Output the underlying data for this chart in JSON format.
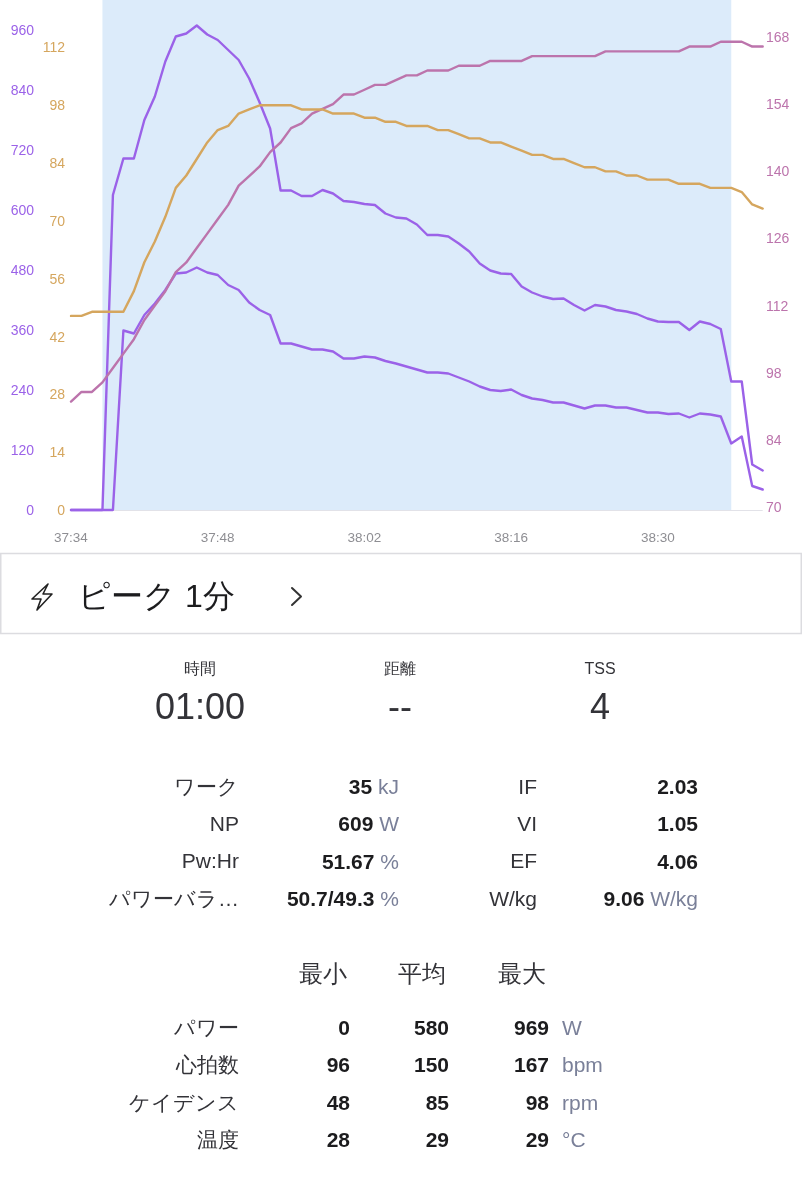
{
  "chart_data": [
    {
      "type": "line",
      "x": [
        2254,
        2255,
        2256,
        2257,
        2258,
        2259,
        2260,
        2261,
        2262,
        2263,
        2264,
        2265,
        2266,
        2267,
        2268,
        2269,
        2270,
        2271,
        2272,
        2273,
        2274,
        2275,
        2276,
        2277,
        2278,
        2279,
        2280,
        2281,
        2282,
        2283,
        2284,
        2285,
        2286,
        2287,
        2288,
        2289,
        2290,
        2291,
        2292,
        2293,
        2294,
        2295,
        2296,
        2297,
        2298,
        2299,
        2300,
        2301,
        2302,
        2303,
        2304,
        2305,
        2306,
        2307,
        2308,
        2309,
        2310,
        2311,
        2312,
        2313,
        2314,
        2315,
        2316,
        2317,
        2318,
        2319,
        2320
      ],
      "xlim": [
        2254,
        2320
      ],
      "xticks": [
        {
          "value": 2254,
          "label": "37:34"
        },
        {
          "value": 2268,
          "label": "37:48"
        },
        {
          "value": 2282,
          "label": "38:02"
        },
        {
          "value": 2296,
          "label": "38:16"
        },
        {
          "value": 2310,
          "label": "38:30"
        }
      ],
      "ylim": [
        0,
        1020
      ],
      "yticks": [
        0,
        120,
        240,
        360,
        480,
        600,
        720,
        840,
        960
      ],
      "y2lim": [
        69.4,
        175.7
      ],
      "y2ticks": [
        70,
        84,
        98,
        112,
        126,
        140,
        154,
        168
      ],
      "y3lim": [
        0,
        123.5
      ],
      "y3ticks": [
        0,
        14,
        28,
        42,
        56,
        70,
        84,
        98,
        112
      ],
      "series": [
        {
          "color": "#9b62e8",
          "values": [
            0,
            0,
            0,
            0,
            630,
            703,
            703,
            780,
            827,
            897,
            947,
            953,
            969,
            951,
            940,
            920,
            900,
            863,
            815,
            763,
            639,
            639,
            628,
            628,
            640,
            633,
            618,
            616,
            612,
            610,
            593,
            585,
            583,
            571,
            550,
            550,
            547,
            533,
            517,
            493,
            479,
            473,
            472,
            447,
            435,
            427,
            422,
            423,
            410,
            399,
            410,
            407,
            400,
            397,
            392,
            383,
            377,
            376,
            376,
            360,
            377,
            372,
            362,
            257,
            257,
            91,
            79
          ]
        },
        {
          "color": "#9b62e8",
          "values": [
            0,
            0,
            0,
            0,
            0,
            359,
            353,
            390,
            413,
            440,
            473,
            475,
            485,
            475,
            470,
            450,
            440,
            415,
            400,
            390,
            333,
            333,
            327,
            321,
            321,
            317,
            303,
            303,
            307,
            305,
            298,
            293,
            287,
            281,
            275,
            275,
            273,
            265,
            257,
            247,
            240,
            238,
            241,
            230,
            223,
            220,
            215,
            215,
            209,
            203,
            209,
            209,
            205,
            205,
            200,
            195,
            195,
            192,
            193,
            185,
            193,
            191,
            187,
            133,
            147,
            48,
            41
          ]
        },
        {
          "color": "#bc74ac",
          "axis": "y2",
          "values": [
            92,
            94,
            94,
            96,
            99,
            102,
            105,
            109,
            112,
            115,
            119,
            121,
            124,
            127,
            130,
            133,
            137,
            139,
            141,
            144,
            146,
            149,
            150,
            152,
            153,
            154,
            156,
            156,
            157,
            158,
            158,
            159,
            160,
            160,
            161,
            161,
            161,
            162,
            162,
            162,
            163,
            163,
            163,
            163,
            164,
            164,
            164,
            164,
            164,
            164,
            164,
            165,
            165,
            165,
            165,
            165,
            165,
            165,
            165,
            166,
            166,
            166,
            167,
            167,
            167,
            166,
            166
          ]
        },
        {
          "color": "#d5a65e",
          "axis": "y3",
          "values": [
            47,
            47,
            48,
            48,
            48,
            48,
            53,
            60,
            65,
            71,
            78,
            81,
            85,
            89,
            92,
            93,
            96,
            97,
            98,
            98,
            98,
            98,
            97,
            97,
            97,
            96,
            96,
            96,
            95,
            95,
            94,
            94,
            93,
            93,
            93,
            92,
            92,
            91,
            90,
            90,
            89,
            89,
            88,
            87,
            86,
            86,
            85,
            85,
            84,
            83,
            83,
            82,
            82,
            81,
            81,
            80,
            80,
            80,
            79,
            79,
            79,
            78,
            78,
            78,
            77,
            74,
            73
          ]
        }
      ],
      "bands": [
        {
          "axis": "x",
          "from": 2257,
          "to": 2317,
          "color": "#dcebfa"
        }
      ]
    },
    {
      "type": "other",
      "title": "ピーク 1分",
      "annotations": [
        "時間",
        "01:00",
        "距離",
        "--",
        "TSS",
        "4",
        "ワーク",
        "35 kJ",
        "IF",
        "2.03",
        "NP",
        "609 W",
        "VI",
        "1.05",
        "Pw:Hr",
        "51.67 %",
        "EF",
        "4.06",
        "パワーバラ…",
        "50.7/49.3 %",
        "W/kg",
        "9.06 W/kg",
        "最小",
        "平均",
        "最大",
        "パワー",
        "0",
        "580",
        "969",
        "W",
        "心拍数",
        "96",
        "150",
        "167",
        "bpm",
        "ケイデンス",
        "48",
        "85",
        "98",
        "rpm",
        "温度",
        "28",
        "29",
        "29",
        "°C"
      ]
    }
  ]
}
